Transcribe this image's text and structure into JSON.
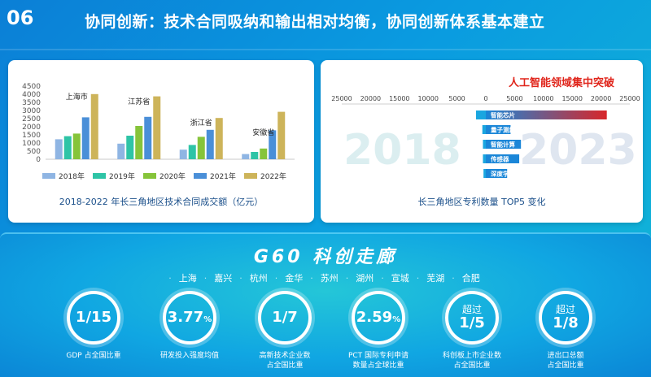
{
  "header": {
    "number": "06",
    "title": "协同创新：技术合同吸纳和输出相对均衡，协同创新体系基本建立"
  },
  "left_panel": {
    "caption": "2018-2022 年长三角地区技术合同成交额（亿元）"
  },
  "right_panel": {
    "caption": "长三角地区专利数量 TOP5 变化",
    "year_left": "2018",
    "year_right": "2023"
  },
  "g60": {
    "title": "G60 科创走廊",
    "cities": [
      "上海",
      "嘉兴",
      "杭州",
      "金华",
      "苏州",
      "湖州",
      "宣城",
      "芜湖",
      "合肥"
    ]
  },
  "stats": [
    {
      "prefix": "",
      "value": "1/15",
      "suffix": "",
      "label_lines": [
        "GDP 占全国比重"
      ]
    },
    {
      "prefix": "",
      "value": "3.77",
      "suffix": "%",
      "label_lines": [
        "研发投入强度均值"
      ]
    },
    {
      "prefix": "",
      "value": "1/7",
      "suffix": "",
      "label_lines": [
        "高新技术企业数",
        "占全国比重"
      ]
    },
    {
      "prefix": "",
      "value": "2.59",
      "suffix": "%",
      "label_lines": [
        "PCT 国际专利申请",
        "数量占全球比重"
      ]
    },
    {
      "prefix": "超过",
      "value": "1/5",
      "suffix": "",
      "label_lines": [
        "科创板上市企业数",
        "占全国比重"
      ]
    },
    {
      "prefix": "超过",
      "value": "1/8",
      "suffix": "",
      "label_lines": [
        "进出口总额",
        "占全国比重"
      ]
    }
  ],
  "colors": {
    "y2018": "#8fb5e3",
    "y2019": "#2ec4a6",
    "y2020": "#86c43a",
    "y2021": "#4a8fd8",
    "y2022": "#cdb45a",
    "bar_2018": "#1aa6e0",
    "bar_2023_start": "#1a86d8",
    "bar_2023_end": "#d8262a",
    "right_title": "#e0251b"
  },
  "chart_data": [
    {
      "type": "bar",
      "title": "",
      "xlabel": "",
      "ylabel": "",
      "ylim": [
        0,
        4500
      ],
      "yticks": [
        0,
        500,
        1000,
        1500,
        2000,
        2500,
        3000,
        3500,
        4000,
        4500
      ],
      "categories": [
        "上海市",
        "江苏省",
        "浙江省",
        "安徽省"
      ],
      "series": [
        {
          "name": "2018年",
          "values": [
            1230,
            960,
            590,
            320
          ]
        },
        {
          "name": "2019年",
          "values": [
            1420,
            1450,
            880,
            450
          ]
        },
        {
          "name": "2020年",
          "values": [
            1580,
            2050,
            1380,
            660
          ]
        },
        {
          "name": "2021年",
          "values": [
            2580,
            2610,
            1810,
            1780
          ]
        },
        {
          "name": "2022年",
          "values": [
            4010,
            3870,
            2540,
            2920
          ]
        }
      ],
      "legend": "bottom",
      "grid": false
    },
    {
      "type": "bar",
      "title": "人工智能领域集中突破",
      "orientation": "horizontal-diverging",
      "xticks": [
        "25000",
        "20000",
        "15000",
        "10000",
        "5000",
        "0",
        "5000",
        "10000",
        "15000",
        "20000",
        "25000"
      ],
      "xlim": [
        -25000,
        25000
      ],
      "categories": [
        "智能芯片",
        "量子测量",
        "智能计算",
        "传感器",
        "深度学习"
      ],
      "series": [
        {
          "name": "2018",
          "values": [
            -1700,
            -600,
            -500,
            -500,
            -400
          ]
        },
        {
          "name": "2023",
          "values": [
            21000,
            4300,
            6100,
            5800,
            3700
          ]
        }
      ]
    }
  ]
}
